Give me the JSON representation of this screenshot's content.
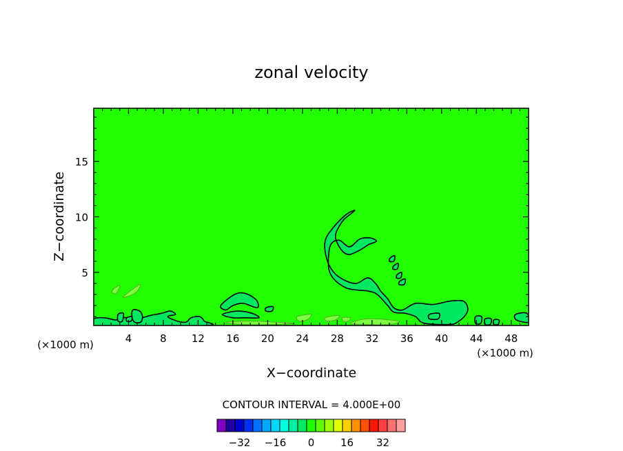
{
  "chart_data": {
    "type": "contour",
    "title": "zonal velocity",
    "xlabel": "X−coordinate",
    "ylabel": "Z−coordinate",
    "x_units": "(×1000 m)",
    "xlim": [
      0,
      50
    ],
    "ylim": [
      0.2,
      19.8
    ],
    "x_ticks": [
      4,
      8,
      12,
      16,
      20,
      24,
      28,
      32,
      36,
      40,
      44,
      48
    ],
    "y_ticks": [
      5,
      10,
      15
    ],
    "background_color": "#22ff00",
    "contour_interval_label": "CONTOUR INTERVAL = 4.000E+00",
    "colorbar": {
      "colors": [
        "#8000c0",
        "#2000a0",
        "#0000c8",
        "#0030f0",
        "#0070ff",
        "#00a8ff",
        "#00d8ff",
        "#00ffe0",
        "#00f0a0",
        "#00e860",
        "#20ff00",
        "#60ff00",
        "#a0ff00",
        "#e0ff00",
        "#ffd000",
        "#ff9000",
        "#ff5000",
        "#ff1800",
        "#ff4040",
        "#ff7070",
        "#ffa0a0"
      ],
      "tick_labels": [
        "−32",
        "−16",
        "0",
        "16",
        "32"
      ]
    },
    "contours": [
      {
        "level": "positive",
        "color": "#7cff40",
        "points": [
          [
            2.3,
            3.5
          ],
          [
            3.0,
            3.8
          ],
          [
            2.6,
            3.1
          ],
          [
            2.1,
            3.2
          ]
        ]
      },
      {
        "level": "positive",
        "color": "#7cff40",
        "points": [
          [
            3.4,
            2.8
          ],
          [
            5.3,
            3.9
          ],
          [
            5.0,
            3.3
          ],
          [
            4.2,
            2.9
          ]
        ]
      },
      {
        "level": "positive",
        "color": "#7cff40",
        "points": [
          [
            23.4,
            1.0
          ],
          [
            25.0,
            1.2
          ],
          [
            24.5,
            0.7
          ],
          [
            23.6,
            0.6
          ]
        ]
      },
      {
        "level": "positive",
        "color": "#7cff40",
        "points": [
          [
            26.6,
            0.9
          ],
          [
            28.2,
            1.1
          ],
          [
            27.8,
            0.7
          ],
          [
            26.8,
            0.6
          ]
        ]
      },
      {
        "level": "positive",
        "color": "#7cff40",
        "points": [
          [
            28.6,
            0.9
          ],
          [
            29.5,
            0.9
          ],
          [
            29.3,
            0.6
          ],
          [
            28.7,
            0.6
          ]
        ]
      },
      {
        "level": "positive",
        "color": "#7cff40",
        "points": [
          [
            15.2,
            0.5
          ],
          [
            18.0,
            0.6
          ],
          [
            21.0,
            0.5
          ],
          [
            23.0,
            0.4
          ],
          [
            21.0,
            0.3
          ],
          [
            17.0,
            0.3
          ]
        ]
      },
      {
        "level": "positive",
        "color": "#7cff40",
        "points": [
          [
            29.5,
            0.4
          ],
          [
            31.5,
            0.8
          ],
          [
            35.0,
            0.6
          ],
          [
            34.0,
            0.3
          ],
          [
            31.0,
            0.3
          ]
        ]
      },
      {
        "level": "negative",
        "color": "#00e860",
        "points": [
          [
            30.0,
            10.6
          ],
          [
            29.0,
            10.2
          ],
          [
            27.5,
            9.0
          ],
          [
            26.6,
            7.8
          ],
          [
            26.8,
            6.2
          ],
          [
            27.6,
            5.0
          ],
          [
            28.8,
            4.3
          ],
          [
            30.2,
            4.0
          ],
          [
            31.5,
            4.5
          ],
          [
            32.4,
            4.0
          ],
          [
            33.0,
            3.3
          ],
          [
            33.8,
            2.6
          ],
          [
            34.5,
            1.8
          ],
          [
            35.5,
            1.6
          ],
          [
            37.0,
            2.2
          ],
          [
            39.0,
            2.1
          ],
          [
            41.0,
            2.4
          ],
          [
            42.5,
            2.4
          ],
          [
            43.0,
            1.8
          ],
          [
            42.8,
            1.2
          ],
          [
            42.0,
            0.6
          ],
          [
            41.0,
            0.3
          ],
          [
            38.0,
            0.4
          ],
          [
            37.0,
            1.0
          ],
          [
            35.8,
            1.3
          ],
          [
            34.5,
            1.4
          ],
          [
            33.8,
            2.0
          ],
          [
            32.6,
            3.0
          ],
          [
            31.6,
            3.3
          ],
          [
            30.3,
            3.4
          ],
          [
            29.0,
            3.6
          ],
          [
            27.6,
            4.4
          ],
          [
            27.0,
            5.5
          ],
          [
            27.2,
            7.4
          ],
          [
            28.2,
            7.9
          ],
          [
            29.4,
            7.3
          ],
          [
            30.6,
            8.0
          ],
          [
            31.8,
            8.1
          ],
          [
            32.5,
            7.8
          ],
          [
            31.6,
            7.5
          ],
          [
            30.6,
            7.0
          ],
          [
            29.3,
            6.6
          ],
          [
            28.4,
            7.1
          ],
          [
            27.8,
            8.3
          ],
          [
            28.6,
            9.6
          ],
          [
            29.6,
            10.3
          ]
        ]
      },
      {
        "level": "negative",
        "color": "#00e860",
        "points": [
          [
            34.1,
            6.3
          ],
          [
            34.6,
            6.5
          ],
          [
            34.5,
            6.0
          ],
          [
            34.0,
            6.0
          ]
        ]
      },
      {
        "level": "negative",
        "color": "#00e860",
        "points": [
          [
            34.5,
            5.6
          ],
          [
            35.0,
            5.8
          ],
          [
            34.9,
            5.3
          ],
          [
            34.4,
            5.3
          ]
        ]
      },
      {
        "level": "negative",
        "color": "#00e860",
        "points": [
          [
            34.9,
            4.8
          ],
          [
            35.4,
            5.0
          ],
          [
            35.3,
            4.5
          ],
          [
            34.8,
            4.5
          ]
        ]
      },
      {
        "level": "negative",
        "color": "#00e860",
        "points": [
          [
            35.2,
            4.2
          ],
          [
            35.8,
            4.4
          ],
          [
            35.7,
            3.9
          ],
          [
            35.1,
            3.9
          ]
        ]
      },
      {
        "level": "negative",
        "color": "#00e860",
        "points": [
          [
            38.6,
            1.2
          ],
          [
            39.7,
            1.3
          ],
          [
            39.6,
            0.8
          ],
          [
            38.6,
            0.8
          ]
        ]
      },
      {
        "level": "negative",
        "color": "#00e860",
        "points": [
          [
            14.6,
            2.0
          ],
          [
            16.2,
            3.0
          ],
          [
            17.4,
            3.1
          ],
          [
            18.7,
            2.5
          ],
          [
            18.8,
            1.8
          ],
          [
            17.2,
            2.2
          ],
          [
            16.0,
            2.0
          ],
          [
            15.2,
            1.6
          ]
        ]
      },
      {
        "level": "negative",
        "color": "#00e860",
        "points": [
          [
            14.8,
            1.2
          ],
          [
            16.5,
            1.5
          ],
          [
            18.2,
            1.3
          ],
          [
            19.0,
            0.9
          ],
          [
            17.5,
            0.9
          ],
          [
            16.0,
            0.9
          ]
        ]
      },
      {
        "level": "negative",
        "color": "#00e860",
        "points": [
          [
            19.8,
            1.8
          ],
          [
            20.6,
            1.9
          ],
          [
            20.5,
            1.5
          ],
          [
            19.8,
            1.5
          ]
        ]
      },
      {
        "level": "negative",
        "color": "#00e860",
        "points": [
          [
            0.0,
            0.8
          ],
          [
            1.2,
            0.9
          ],
          [
            2.5,
            0.7
          ],
          [
            3.0,
            0.9
          ],
          [
            4.0,
            0.9
          ],
          [
            5.0,
            0.8
          ],
          [
            6.5,
            1.1
          ],
          [
            7.8,
            1.3
          ],
          [
            8.8,
            1.5
          ],
          [
            9.4,
            1.2
          ],
          [
            8.5,
            1.0
          ],
          [
            9.6,
            0.6
          ],
          [
            10.6,
            0.5
          ],
          [
            11.2,
            0.9
          ],
          [
            12.2,
            1.0
          ],
          [
            12.7,
            0.6
          ],
          [
            12.8,
            0.2
          ],
          [
            0.0,
            0.2
          ]
        ]
      },
      {
        "level": "negative",
        "color": "#00e860",
        "points": [
          [
            2.8,
            1.2
          ],
          [
            3.4,
            1.3
          ],
          [
            3.3,
            0.6
          ],
          [
            2.8,
            0.6
          ]
        ]
      },
      {
        "level": "negative",
        "color": "#00e860",
        "points": [
          [
            3.8,
            0.9
          ],
          [
            4.4,
            1.0
          ],
          [
            4.3,
            0.6
          ],
          [
            3.8,
            0.6
          ]
        ]
      },
      {
        "level": "negative",
        "color": "#00e860",
        "points": [
          [
            4.5,
            1.6
          ],
          [
            5.3,
            1.5
          ],
          [
            5.6,
            1.0
          ],
          [
            5.4,
            0.5
          ],
          [
            4.7,
            0.5
          ],
          [
            4.4,
            1.0
          ]
        ]
      },
      {
        "level": "negative",
        "color": "#00e860",
        "points": [
          [
            43.9,
            1.0
          ],
          [
            44.6,
            1.0
          ],
          [
            44.5,
            0.4
          ],
          [
            43.9,
            0.4
          ]
        ]
      },
      {
        "level": "negative",
        "color": "#00e860",
        "points": [
          [
            45.0,
            0.8
          ],
          [
            45.7,
            0.8
          ],
          [
            45.6,
            0.3
          ],
          [
            45.0,
            0.3
          ]
        ]
      },
      {
        "level": "negative",
        "color": "#00e860",
        "points": [
          [
            46.0,
            0.7
          ],
          [
            46.6,
            0.7
          ],
          [
            46.5,
            0.3
          ],
          [
            46.0,
            0.3
          ]
        ]
      },
      {
        "level": "negative",
        "color": "#00e860",
        "points": [
          [
            48.5,
            1.2
          ],
          [
            49.8,
            1.3
          ],
          [
            50.0,
            0.5
          ],
          [
            48.6,
            0.7
          ]
        ]
      }
    ]
  }
}
